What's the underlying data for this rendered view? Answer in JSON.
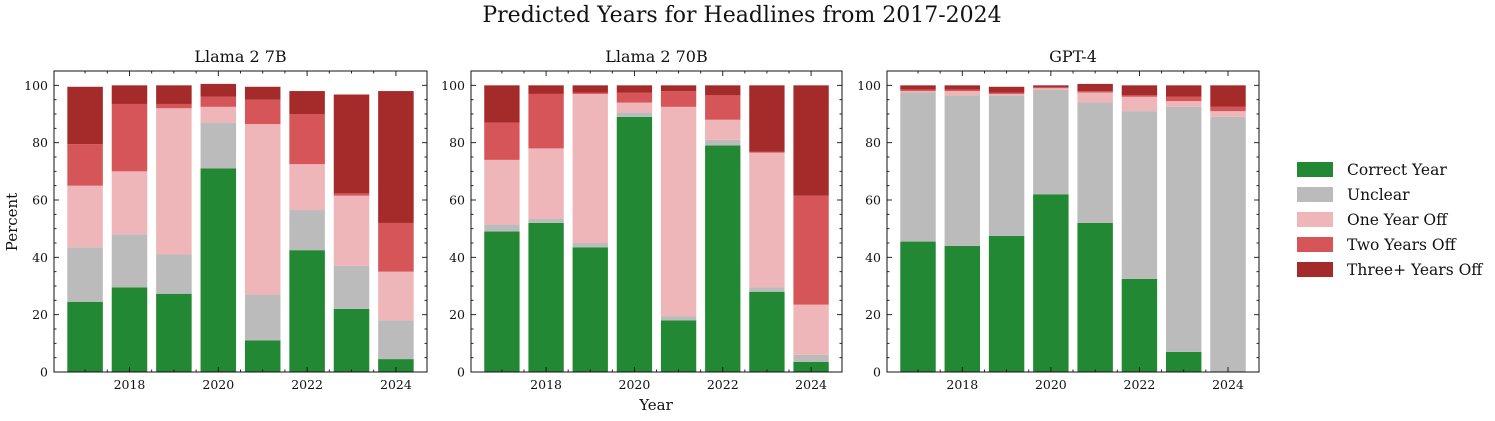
{
  "chart_data": {
    "type": "bar",
    "stacked": true,
    "title": "Predicted Years for Headlines from 2017-2024",
    "xlabel": "Year",
    "ylabel": "Percent",
    "ylim": [
      0,
      105
    ],
    "yticks": [
      0,
      20,
      40,
      60,
      80,
      100
    ],
    "xticks": [
      2018,
      2020,
      2022,
      2024
    ],
    "categories": [
      2017,
      2018,
      2019,
      2020,
      2021,
      2022,
      2023,
      2024
    ],
    "legend_position": "right",
    "series_order": [
      "Correct Year",
      "Unclear",
      "One Year Off",
      "Two Years Off",
      "Three+ Years Off"
    ],
    "colors": {
      "Correct Year": "#228833",
      "Unclear": "#bbbbbb",
      "One Year Off": "#eeb6b8",
      "Two Years Off": "#d65559",
      "Three+ Years Off": "#a52a2a"
    },
    "panels": [
      {
        "title": "Llama 2 7B",
        "series": [
          {
            "name": "Correct Year",
            "values": [
              24.5,
              29.5,
              27.3,
              71.0,
              11.0,
              42.5,
              22.0,
              4.5
            ]
          },
          {
            "name": "Unclear",
            "values": [
              19.0,
              18.5,
              13.7,
              16.0,
              16.0,
              14.0,
              15.0,
              13.5
            ]
          },
          {
            "name": "One Year Off",
            "values": [
              21.5,
              22.0,
              51.0,
              5.5,
              59.5,
              16.0,
              24.5,
              17.0
            ]
          },
          {
            "name": "Two Years Off",
            "values": [
              14.5,
              23.5,
              1.5,
              3.5,
              8.5,
              17.5,
              0.8,
              17.0
            ]
          },
          {
            "name": "Three+ Years Off",
            "values": [
              20.0,
              6.5,
              6.5,
              4.5,
              4.5,
              8.0,
              34.5,
              46.0
            ]
          }
        ]
      },
      {
        "title": "Llama 2 70B",
        "series": [
          {
            "name": "Correct Year",
            "values": [
              49.0,
              52.0,
              43.5,
              89.0,
              18.0,
              79.0,
              28.0,
              3.5
            ]
          },
          {
            "name": "Unclear",
            "values": [
              2.5,
              1.5,
              1.5,
              1.5,
              1.5,
              2.0,
              1.5,
              2.5
            ]
          },
          {
            "name": "One Year Off",
            "values": [
              22.5,
              24.5,
              52.0,
              3.5,
              73.0,
              7.0,
              47.0,
              17.5
            ]
          },
          {
            "name": "Two Years Off",
            "values": [
              13.0,
              19.0,
              0.5,
              3.5,
              5.5,
              8.5,
              0.3,
              38.0
            ]
          },
          {
            "name": "Three+ Years Off",
            "values": [
              13.0,
              3.0,
              2.5,
              2.5,
              2.0,
              3.5,
              23.2,
              38.5
            ]
          }
        ]
      },
      {
        "title": "GPT-4",
        "series": [
          {
            "name": "Correct Year",
            "values": [
              45.5,
              44.0,
              47.5,
              62.0,
              52.0,
              32.5,
              7.0,
              0.0
            ]
          },
          {
            "name": "Unclear",
            "values": [
              52.0,
              52.5,
              49.0,
              36.5,
              42.0,
              58.5,
              85.5,
              89.0
            ]
          },
          {
            "name": "One Year Off",
            "values": [
              0.5,
              1.5,
              0.5,
              0.5,
              3.5,
              5.0,
              2.0,
              2.0
            ]
          },
          {
            "name": "Two Years Off",
            "values": [
              0.5,
              0.5,
              0.5,
              0.3,
              0.5,
              0.5,
              1.5,
              1.5
            ]
          },
          {
            "name": "Three+ Years Off",
            "values": [
              1.5,
              1.5,
              2.0,
              0.7,
              2.5,
              3.5,
              4.0,
              7.5
            ]
          }
        ]
      }
    ]
  }
}
